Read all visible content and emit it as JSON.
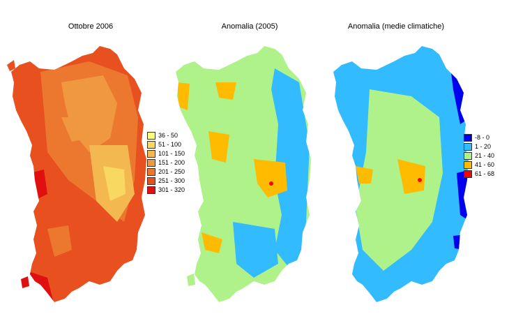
{
  "panels": [
    {
      "title": "Ottobre 2006",
      "legend": [
        {
          "label": "36 - 50",
          "color": "#ffff80"
        },
        {
          "label": "51 - 100",
          "color": "#f8d860"
        },
        {
          "label": "101 - 150",
          "color": "#f4b850"
        },
        {
          "label": "151 - 200",
          "color": "#f09840"
        },
        {
          "label": "201 - 250",
          "color": "#ec7830"
        },
        {
          "label": "251 - 300",
          "color": "#e85020"
        },
        {
          "label": "301 - 320",
          "color": "#e01010"
        }
      ]
    },
    {
      "title": "Anomalia (2005)"
    },
    {
      "title": "Anomalia (medie climatiche)",
      "legend": [
        {
          "label": "-8 - 0",
          "color": "#0000ee"
        },
        {
          "label": "1 - 20",
          "color": "#33bbff"
        },
        {
          "label": "21 - 40",
          "color": "#b0f28a"
        },
        {
          "label": "41 - 60",
          "color": "#ffbb00"
        },
        {
          "label": "61 - 68",
          "color": "#ff0000"
        }
      ]
    }
  ],
  "colors": {
    "ottobre_base": "#ec7830",
    "anomalia_base": "#b0f28a",
    "anomalia_low": "#33bbff",
    "anomalia_mid": "#ffbb00"
  }
}
